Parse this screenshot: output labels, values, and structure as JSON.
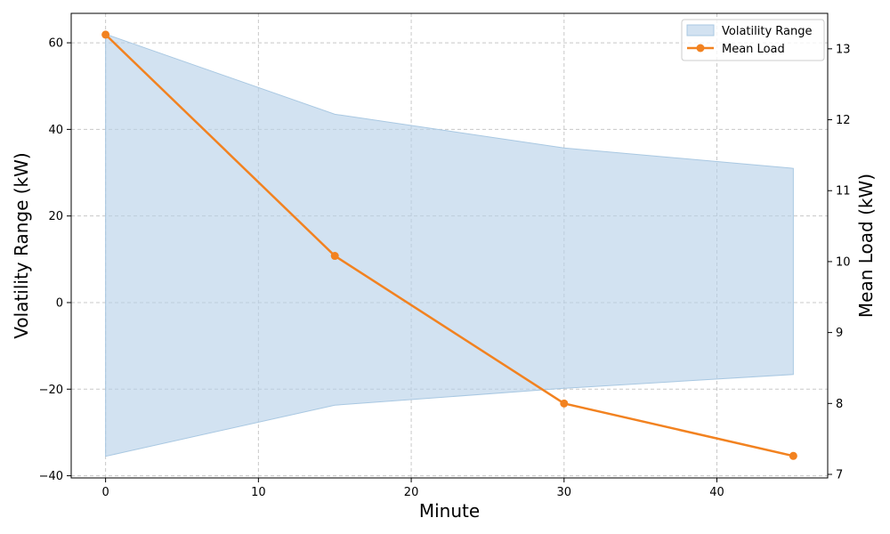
{
  "chart_data": {
    "type": "area+line",
    "x": [
      0,
      15,
      30,
      45
    ],
    "xlabel": "Minute",
    "xlim": [
      -2.25,
      47.25
    ],
    "xticks": [
      0,
      10,
      20,
      30,
      40
    ],
    "grid": true,
    "legend_placement": "top-right",
    "y_left": {
      "label": "Volatility Range (kW)",
      "lim": [
        -40.5,
        66.8
      ],
      "ticks": [
        -40,
        -20,
        0,
        20,
        40,
        60
      ]
    },
    "y_right": {
      "label": "Mean Load (kW)",
      "lim": [
        6.95,
        13.5
      ],
      "ticks": [
        7,
        8,
        9,
        10,
        11,
        12,
        13
      ]
    },
    "series": [
      {
        "name": "Volatility Range",
        "kind": "band",
        "axis": "left",
        "upper": [
          62,
          43.5,
          35.7,
          31
        ],
        "lower": [
          -35.5,
          -23.7,
          -19.8,
          -16.6
        ],
        "color": "#b7d1e8"
      },
      {
        "name": "Mean Load",
        "kind": "line",
        "axis": "right",
        "values": [
          13.2,
          10.08,
          8.0,
          7.26
        ],
        "color": "#f28220"
      }
    ]
  }
}
